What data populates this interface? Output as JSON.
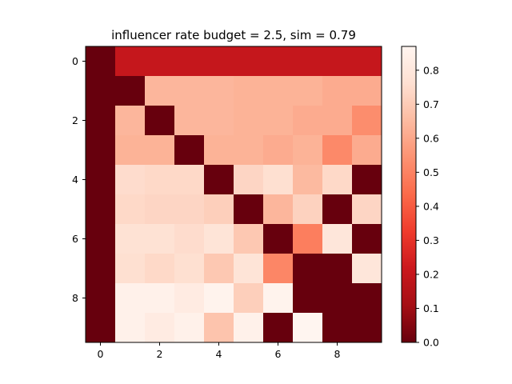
{
  "chart_data": {
    "type": "heatmap",
    "title": "influencer rate budget = 2.5, sim = 0.79",
    "xlabel": "",
    "ylabel": "",
    "rows": 10,
    "cols": 10,
    "x_ticks": [
      0,
      2,
      4,
      6,
      8
    ],
    "y_ticks": [
      0,
      2,
      4,
      6,
      8
    ],
    "colormap": "Reds_r",
    "vmin": 0.0,
    "vmax": 0.87,
    "colorbar_ticks": [
      "0.0",
      "0.1",
      "0.2",
      "0.3",
      "0.4",
      "0.5",
      "0.6",
      "0.7",
      "0.8"
    ],
    "values": [
      [
        0.0,
        0.2,
        0.2,
        0.2,
        0.2,
        0.2,
        0.2,
        0.2,
        0.2,
        0.2
      ],
      [
        0.0,
        0.0,
        0.64,
        0.64,
        0.64,
        0.63,
        0.63,
        0.63,
        0.61,
        0.61
      ],
      [
        0.0,
        0.64,
        0.0,
        0.64,
        0.64,
        0.63,
        0.63,
        0.61,
        0.61,
        0.53
      ],
      [
        0.0,
        0.63,
        0.63,
        0.0,
        0.63,
        0.63,
        0.61,
        0.63,
        0.52,
        0.61
      ],
      [
        0.0,
        0.75,
        0.74,
        0.74,
        0.0,
        0.73,
        0.76,
        0.65,
        0.74,
        0.0
      ],
      [
        0.0,
        0.74,
        0.73,
        0.73,
        0.71,
        0.0,
        0.64,
        0.72,
        0.0,
        0.73
      ],
      [
        0.0,
        0.77,
        0.77,
        0.75,
        0.78,
        0.69,
        0.0,
        0.49,
        0.79,
        0.0
      ],
      [
        0.0,
        0.76,
        0.74,
        0.76,
        0.69,
        0.78,
        0.51,
        0.0,
        0.0,
        0.79
      ],
      [
        0.0,
        0.85,
        0.85,
        0.82,
        0.86,
        0.71,
        0.86,
        0.0,
        0.0,
        0.0
      ],
      [
        0.0,
        0.85,
        0.82,
        0.85,
        0.68,
        0.85,
        0.0,
        0.87,
        0.0,
        0.0
      ]
    ]
  }
}
